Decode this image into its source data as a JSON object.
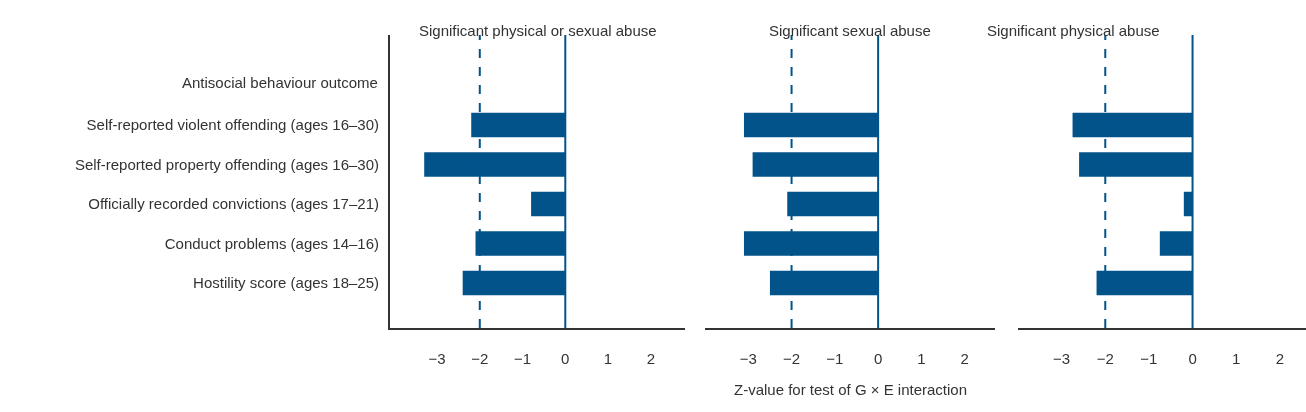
{
  "chart_data": [
    {
      "type": "bar",
      "orientation": "horizontal",
      "title": "Significant physical or sexual abuse",
      "ylabel": "Antisocial behaviour outcome",
      "categories": [
        "Self-reported violent offending (ages 16–30)",
        "Self-reported property offending (ages 16–30)",
        "Officially recorded convictions (ages 17–21)",
        "Conduct problems (ages 14–16)",
        "Hostility score (ages 18–25)"
      ],
      "values": [
        -2.2,
        -3.3,
        -0.8,
        -2.1,
        -2.4
      ],
      "color": "#02538a",
      "xlim": [
        -4.1,
        2.8
      ],
      "xticks": [
        -3,
        -2,
        -1,
        0,
        1,
        2
      ],
      "ref_lines": [
        {
          "axis": "x",
          "value": -2,
          "line_style": "dashed",
          "color": "#02538a"
        },
        {
          "axis": "x",
          "value": 0,
          "line_style": "solid",
          "color": "#02538a"
        }
      ]
    },
    {
      "type": "bar",
      "orientation": "horizontal",
      "title": "Significant sexual abuse",
      "xlabel": "Z-value for test of G × E interaction",
      "categories": [
        null,
        null,
        null,
        null,
        null
      ],
      "values": [
        -3.1,
        -2.9,
        -2.1,
        -3.1,
        -2.5
      ],
      "color": "#02538a",
      "tick_labels": "x",
      "xlim": [
        -4.0,
        2.7
      ],
      "xticks": [
        -3,
        -2,
        -1,
        0,
        1,
        2
      ],
      "ref_lines": [
        {
          "axis": "x",
          "value": -2,
          "line_style": "dashed",
          "color": "#02538a"
        },
        {
          "axis": "x",
          "value": 0,
          "line_style": "solid",
          "color": "#02538a"
        }
      ]
    },
    {
      "type": "bar",
      "orientation": "horizontal",
      "title": "Significant physical abuse",
      "categories": [
        null,
        null,
        null,
        null,
        null
      ],
      "values": [
        -2.75,
        -2.6,
        -0.2,
        -0.75,
        -2.2
      ],
      "color": "#02538a",
      "tick_labels": "x",
      "xlim": [
        -4.0,
        2.6
      ],
      "xticks": [
        -3,
        -2,
        -1,
        0,
        1,
        2
      ],
      "ref_lines": [
        {
          "axis": "x",
          "value": -2,
          "line_style": "dashed",
          "color": "#02538a"
        },
        {
          "axis": "x",
          "value": 0,
          "line_style": "solid",
          "color": "#02538a"
        }
      ]
    }
  ]
}
